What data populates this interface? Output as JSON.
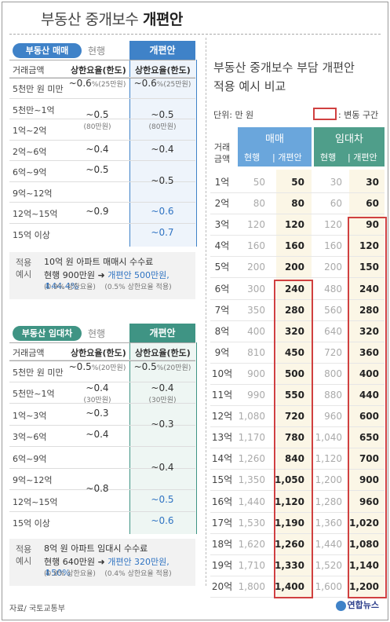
{
  "title": {
    "prefix": "부동산 중개보수",
    "bold": "개편안"
  },
  "sale": {
    "pill": "부동산 매매",
    "current": "현행",
    "new_head": "개편안",
    "col_amount": "거래금액",
    "col_cur": "상한요율(한도)",
    "col_new": "상한요율(한도)",
    "rows": [
      "5천만 원 미만",
      "5천만~1억",
      "1억~2억",
      "2억~6억",
      "6억~9억",
      "9억~12억",
      "12억~15억",
      "15억 이상"
    ],
    "cur_vals": [
      {
        "v": "~0.6",
        "s": "%(25만원)"
      },
      {
        "v": "~0.5",
        "s": "(80만원)"
      },
      {
        "v": "~0.4",
        "s": ""
      },
      {
        "v": "~0.5",
        "s": ""
      },
      {
        "v": "~0.9",
        "s": ""
      }
    ],
    "new_vals": [
      {
        "v": "~0.6",
        "s": "%(25만원)"
      },
      {
        "v": "~0.5",
        "s": "(80만원)"
      },
      {
        "v": "~0.4",
        "s": ""
      },
      {
        "v": "~0.5",
        "s": ""
      },
      {
        "v": "~0.6",
        "s": ""
      },
      {
        "v": "~0.7",
        "s": ""
      }
    ],
    "example": {
      "tag1": "적용",
      "tag2": "예시",
      "l1": "10억 원 아파트 매매시 수수료",
      "l2a": "현행 900만원",
      "l2b": "개편안 500만원,",
      "l2c": "44.4%",
      "l3a": "(0.9% 상한요율)",
      "l3b": "(0.5% 상한요율 적용)"
    }
  },
  "rent": {
    "pill": "부동산 임대차",
    "current": "현행",
    "new_head": "개편안",
    "col_amount": "거래금액",
    "col_cur": "상한요율(한도)",
    "col_new": "상한요율(한도)",
    "rows": [
      "5천만 원 미만",
      "5천만~1억",
      "1억~3억",
      "3억~6억",
      "6억~9억",
      "9억~12억",
      "12억~15억",
      "15억 이상"
    ],
    "cur_vals": [
      {
        "v": "~0.5",
        "s": "%(20만원)"
      },
      {
        "v": "~0.4",
        "s": "(30만원)"
      },
      {
        "v": "~0.3",
        "s": ""
      },
      {
        "v": "~0.4",
        "s": ""
      },
      {
        "v": "~0.8",
        "s": ""
      }
    ],
    "new_vals": [
      {
        "v": "~0.5",
        "s": "%(20만원)"
      },
      {
        "v": "~0.4",
        "s": "(30만원)"
      },
      {
        "v": "~0.3",
        "s": ""
      },
      {
        "v": "~0.4",
        "s": ""
      },
      {
        "v": "~0.5",
        "s": ""
      },
      {
        "v": "~0.6",
        "s": ""
      }
    ],
    "example": {
      "tag1": "적용",
      "tag2": "예시",
      "l1": "8억 원 아파트 임대시 수수료",
      "l2a": "현행 640만원",
      "l2b": "개편안 320만원,",
      "l2c": "50%",
      "l3a": "(0.8% 상한요율)",
      "l3b": "(0.4% 상한요율 적용)"
    }
  },
  "right": {
    "title1": "부동산 중개보수 부담 개편안",
    "title2": "적용 예시 비교",
    "unit": "단위: 만 원",
    "legend": ": 변동 구간",
    "label1": "거래",
    "label2": "금액",
    "sale_head": "매매",
    "rent_head": "임대차",
    "sub_cur": "현행",
    "sub_new": "개편안",
    "rows": [
      {
        "a": "1억",
        "sc": "50",
        "sn": "50",
        "rc": "30",
        "rn": "30"
      },
      {
        "a": "2억",
        "sc": "80",
        "sn": "80",
        "rc": "60",
        "rn": "60"
      },
      {
        "a": "3억",
        "sc": "120",
        "sn": "120",
        "rc": "120",
        "rn": "90"
      },
      {
        "a": "4억",
        "sc": "160",
        "sn": "160",
        "rc": "160",
        "rn": "120"
      },
      {
        "a": "5억",
        "sc": "200",
        "sn": "200",
        "rc": "200",
        "rn": "150"
      },
      {
        "a": "6억",
        "sc": "300",
        "sn": "240",
        "rc": "480",
        "rn": "240"
      },
      {
        "a": "7억",
        "sc": "350",
        "sn": "280",
        "rc": "560",
        "rn": "280"
      },
      {
        "a": "8억",
        "sc": "400",
        "sn": "320",
        "rc": "640",
        "rn": "320"
      },
      {
        "a": "9억",
        "sc": "810",
        "sn": "450",
        "rc": "720",
        "rn": "360"
      },
      {
        "a": "10억",
        "sc": "900",
        "sn": "500",
        "rc": "800",
        "rn": "400"
      },
      {
        "a": "11억",
        "sc": "990",
        "sn": "550",
        "rc": "880",
        "rn": "440"
      },
      {
        "a": "12억",
        "sc": "1,080",
        "sn": "720",
        "rc": "960",
        "rn": "600"
      },
      {
        "a": "13억",
        "sc": "1,170",
        "sn": "780",
        "rc": "1,040",
        "rn": "650"
      },
      {
        "a": "14억",
        "sc": "1,260",
        "sn": "840",
        "rc": "1,120",
        "rn": "700"
      },
      {
        "a": "15억",
        "sc": "1,350",
        "sn": "1,050",
        "rc": "1,200",
        "rn": "900"
      },
      {
        "a": "16억",
        "sc": "1,440",
        "sn": "1,120",
        "rc": "1,280",
        "rn": "960"
      },
      {
        "a": "17억",
        "sc": "1,530",
        "sn": "1,190",
        "rc": "1,360",
        "rn": "1,020"
      },
      {
        "a": "18억",
        "sc": "1,620",
        "sn": "1,260",
        "rc": "1,440",
        "rn": "1,080"
      },
      {
        "a": "19억",
        "sc": "1,710",
        "sn": "1,330",
        "rc": "1,520",
        "rn": "1,140"
      },
      {
        "a": "20억",
        "sc": "1,800",
        "sn": "1,400",
        "rc": "1,600",
        "rn": "1,200"
      }
    ]
  },
  "footer": {
    "source": "자료/ 국토교통부",
    "logo": "연합뉴스"
  }
}
